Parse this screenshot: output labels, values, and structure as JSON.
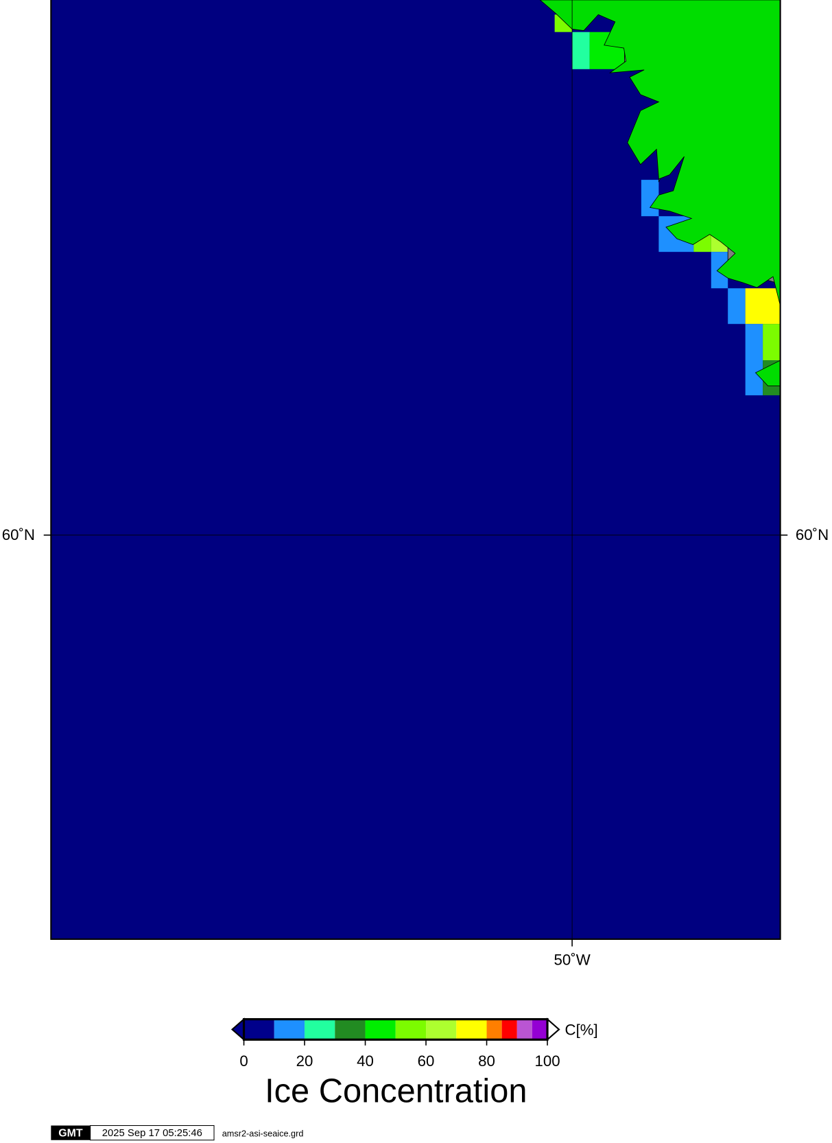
{
  "map": {
    "lat_label": "60˚N",
    "lon_label": "50˚W"
  },
  "colorbar": {
    "unit": "C[%]",
    "title": "Ice Concentration",
    "bounds": [
      0,
      10,
      20,
      30,
      40,
      50,
      60,
      70,
      80,
      85,
      90,
      95,
      100
    ],
    "colors": [
      "#00008b",
      "#1e90ff",
      "#22ff9f",
      "#228b22",
      "#00ee00",
      "#7cfc00",
      "#adff2f",
      "#ffff00",
      "#ff7f00",
      "#ff0000",
      "#ba55d3",
      "#9400d3"
    ],
    "ticks": [
      0,
      20,
      40,
      60,
      80,
      100
    ]
  },
  "footer": {
    "logo": "GMT",
    "timestamp": "2025 Sep 17 05:25:46",
    "file": "amsr2-asi-seaice.grd"
  }
}
